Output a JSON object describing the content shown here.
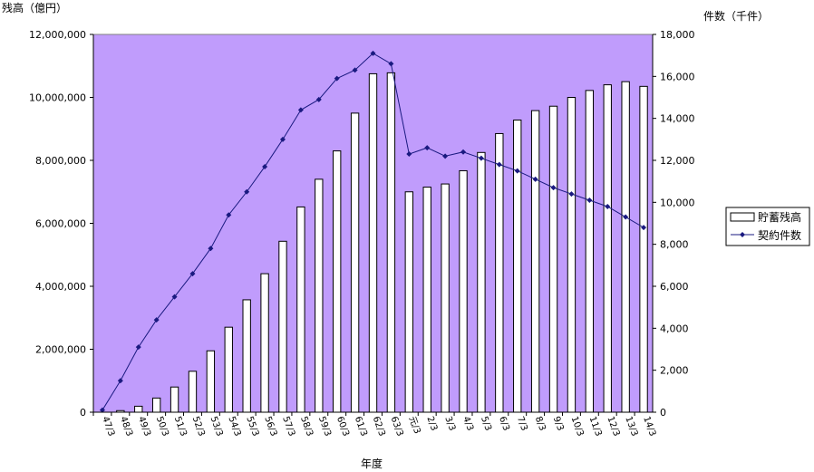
{
  "chart_data": {
    "type": "bar+line",
    "y_left_title": "残高（億円）",
    "y_right_title": "件数（千件）",
    "xlabel": "年度",
    "categories": [
      "47/3",
      "48/3",
      "49/3",
      "50/3",
      "51/3",
      "52/3",
      "53/3",
      "54/3",
      "55/3",
      "56/3",
      "57/3",
      "58/3",
      "59/3",
      "60/3",
      "61/3",
      "62/3",
      "63/3",
      "元/3",
      "2/3",
      "3/3",
      "4/3",
      "5/3",
      "6/3",
      "7/3",
      "8/3",
      "9/3",
      "10/3",
      "11/3",
      "12/3",
      "13/3",
      "14/3"
    ],
    "ylim_left": [
      0,
      12000000
    ],
    "yticks_left": [
      "0",
      "2,000,000",
      "4,000,000",
      "6,000,000",
      "8,000,000",
      "10,000,000",
      "12,000,000"
    ],
    "ylim_right": [
      0,
      18000
    ],
    "yticks_right": [
      "0",
      "2,000",
      "4,000",
      "6,000",
      "8,000",
      "10,000",
      "12,000",
      "14,000",
      "16,000",
      "18,000"
    ],
    "legend_position": "right",
    "series": [
      {
        "name": "貯蓄残高",
        "kind": "bar",
        "axis": "left",
        "values": [
          0,
          50000,
          190000,
          450000,
          800000,
          1300000,
          1950000,
          2700000,
          3570000,
          4400000,
          5430000,
          6520000,
          7400000,
          8300000,
          9500000,
          10750000,
          10780000,
          7000000,
          7150000,
          7250000,
          7670000,
          8250000,
          8850000,
          9280000,
          9580000,
          9720000,
          10000000,
          10220000,
          10400000,
          10500000,
          10350000
        ]
      },
      {
        "name": "契約件数",
        "kind": "line",
        "axis": "right",
        "values": [
          100,
          1500,
          3100,
          4400,
          5500,
          6600,
          7800,
          9400,
          10500,
          11700,
          13000,
          14400,
          14900,
          15900,
          16300,
          17100,
          16600,
          12300,
          12600,
          12200,
          12400,
          12100,
          11800,
          11500,
          11100,
          10700,
          10400,
          10100,
          9800,
          9300,
          8800
        ]
      }
    ],
    "colors": {
      "plot_background": "#c09cfc",
      "bar_fill": "#ffffff",
      "bar_stroke": "#000000",
      "line": "#1a1a80"
    }
  }
}
